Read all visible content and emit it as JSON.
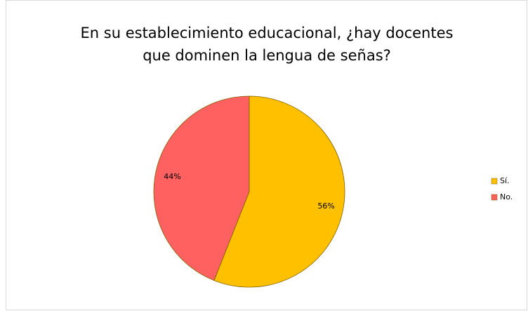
{
  "chart_data": {
    "type": "pie",
    "title": [
      "En su establecimiento educacional, ¿hay docentes",
      "que dominen la lengua de señas?"
    ],
    "categories": [
      "Sí.",
      "No."
    ],
    "values": [
      56,
      44
    ],
    "value_labels": [
      "56%",
      "44%"
    ],
    "colors": [
      "#ffc000",
      "#ff6161"
    ],
    "legend": "right"
  }
}
